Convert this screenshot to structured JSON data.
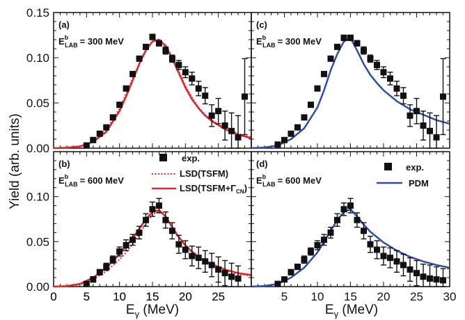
{
  "figure": {
    "ylabel": "Yield  (arb. units)",
    "xlabel_main": "E",
    "xlabel_sub": "γ",
    "xlabel_unit": " (MeV)"
  },
  "colors": {
    "exp": "#111111",
    "lsd": "#e3252b",
    "pdm": "#2c4ea5",
    "axes": "#111111"
  },
  "chart_data": [
    {
      "id": "a",
      "type": "scatter",
      "panel_label": "(a)",
      "energy_prefix": "E",
      "energy_sup": "b",
      "energy_sub": "LAB",
      "energy_value": "= 300 MeV",
      "xlim": [
        0,
        30
      ],
      "ylim": [
        0,
        0.15
      ],
      "x_ticks": [
        "0",
        "5",
        "10",
        "15",
        "20",
        "25"
      ],
      "y_ticks": [
        "0.00",
        "0.05",
        "0.10",
        "0.15"
      ],
      "series": [
        {
          "name": "exp.",
          "kind": "points",
          "x": [
            5,
            6,
            7,
            8,
            9,
            10,
            11,
            12,
            13,
            14,
            15,
            16,
            17,
            18,
            19,
            20,
            21,
            22,
            23,
            24,
            25,
            26,
            27,
            28,
            29
          ],
          "y": [
            0.003,
            0.009,
            0.016,
            0.023,
            0.034,
            0.048,
            0.066,
            0.082,
            0.099,
            0.112,
            0.123,
            0.116,
            0.108,
            0.099,
            0.092,
            0.084,
            0.077,
            0.066,
            0.058,
            0.036,
            0.041,
            0.025,
            0.019,
            0.012,
            0.057
          ],
          "yerr": [
            0.002,
            0.002,
            0.002,
            0.002,
            0.002,
            0.002,
            0.002,
            0.002,
            0.002,
            0.002,
            0.003,
            0.003,
            0.004,
            0.004,
            0.005,
            0.006,
            0.007,
            0.008,
            0.009,
            0.012,
            0.014,
            0.016,
            0.02,
            0.024,
            0.042
          ]
        },
        {
          "name": "LSD(TSFM)",
          "kind": "dotted",
          "x": [
            0,
            2,
            4,
            6,
            8,
            10,
            11,
            12,
            13,
            14,
            15,
            16,
            17,
            18,
            19,
            20,
            21,
            22,
            23,
            24,
            26,
            28,
            30
          ],
          "y": [
            0,
            0.0005,
            0.002,
            0.008,
            0.02,
            0.044,
            0.06,
            0.077,
            0.094,
            0.109,
            0.118,
            0.12,
            0.114,
            0.101,
            0.085,
            0.069,
            0.056,
            0.045,
            0.037,
            0.031,
            0.022,
            0.016,
            0.012
          ]
        },
        {
          "name": "LSD(TSFM+Γ",
          "kind": "solid",
          "x": [
            0,
            2,
            4,
            6,
            8,
            10,
            11,
            12,
            13,
            14,
            15,
            16,
            17,
            18,
            19,
            20,
            21,
            22,
            23,
            24,
            26,
            28,
            30
          ],
          "y": [
            0,
            0.0005,
            0.002,
            0.007,
            0.018,
            0.041,
            0.057,
            0.075,
            0.093,
            0.108,
            0.118,
            0.12,
            0.113,
            0.099,
            0.083,
            0.067,
            0.054,
            0.044,
            0.036,
            0.03,
            0.021,
            0.015,
            0.011
          ]
        }
      ]
    },
    {
      "id": "b",
      "type": "scatter",
      "panel_label": "(b)",
      "energy_prefix": "E",
      "energy_sup": "b",
      "energy_sub": "LAB",
      "energy_value": "= 600 MeV",
      "xlim": [
        0,
        30
      ],
      "ylim": [
        0,
        0.15
      ],
      "x_ticks": [
        "0",
        "5",
        "10",
        "15",
        "20",
        "25"
      ],
      "y_ticks": [
        "0.00",
        "0.05",
        "0.10"
      ],
      "legend": {
        "exp": "exp.",
        "dotted": "LSD(TSFM)",
        "solid_main": "LSD(TSFM+Γ",
        "solid_sub": "CN",
        "solid_close": ")"
      },
      "series": [
        {
          "name": "exp.",
          "kind": "points",
          "x": [
            5,
            6,
            7,
            8,
            9,
            10,
            11,
            12,
            13,
            14,
            15,
            16,
            17,
            18,
            19,
            20,
            21,
            22,
            23,
            24,
            25,
            26,
            27,
            28
          ],
          "y": [
            0.003,
            0.008,
            0.016,
            0.022,
            0.03,
            0.039,
            0.046,
            0.052,
            0.06,
            0.074,
            0.086,
            0.09,
            0.074,
            0.062,
            0.047,
            0.041,
            0.034,
            0.032,
            0.028,
            0.024,
            0.019,
            0.015,
            0.011,
            0.009
          ],
          "yerr": [
            0.002,
            0.003,
            0.003,
            0.004,
            0.004,
            0.005,
            0.006,
            0.006,
            0.007,
            0.007,
            0.008,
            0.008,
            0.009,
            0.009,
            0.01,
            0.01,
            0.011,
            0.012,
            0.012,
            0.013,
            0.014,
            0.014,
            0.015,
            0.014
          ]
        },
        {
          "name": "LSD(TSFM)",
          "kind": "dotted",
          "x": [
            0,
            2,
            4,
            6,
            8,
            10,
            11,
            12,
            13,
            14,
            15,
            16,
            17,
            18,
            19,
            20,
            21,
            22,
            23,
            24,
            26,
            28,
            30
          ],
          "y": [
            0,
            0.0005,
            0.002,
            0.008,
            0.017,
            0.03,
            0.038,
            0.047,
            0.058,
            0.07,
            0.08,
            0.084,
            0.078,
            0.066,
            0.055,
            0.045,
            0.038,
            0.032,
            0.028,
            0.024,
            0.018,
            0.014,
            0.012
          ]
        },
        {
          "name": "LSD(TSFM+Γ",
          "kind": "solid",
          "x": [
            0,
            2,
            4,
            6,
            8,
            10,
            11,
            12,
            13,
            14,
            15,
            16,
            17,
            18,
            19,
            20,
            21,
            22,
            23,
            24,
            26,
            28,
            30
          ],
          "y": [
            0,
            0.0006,
            0.003,
            0.01,
            0.021,
            0.036,
            0.045,
            0.054,
            0.064,
            0.075,
            0.083,
            0.085,
            0.078,
            0.066,
            0.055,
            0.046,
            0.039,
            0.033,
            0.029,
            0.025,
            0.019,
            0.015,
            0.013
          ]
        }
      ]
    },
    {
      "id": "c",
      "type": "scatter",
      "panel_label": "(c)",
      "energy_prefix": "E",
      "energy_sup": "b",
      "energy_sub": "LAB",
      "energy_value": "= 300 MeV",
      "xlim": [
        0,
        30
      ],
      "ylim": [
        0,
        0.15
      ],
      "x_ticks": [],
      "y_ticks": [],
      "series": [
        {
          "name": "exp.",
          "kind": "points",
          "x": [
            4,
            5,
            6,
            7,
            8,
            9,
            10,
            11,
            12,
            13,
            14,
            15,
            16,
            17,
            18,
            19,
            20,
            21,
            22,
            23,
            24,
            25,
            26,
            27,
            28,
            29
          ],
          "y": [
            0.004,
            0.009,
            0.016,
            0.023,
            0.034,
            0.048,
            0.066,
            0.082,
            0.099,
            0.112,
            0.122,
            0.122,
            0.116,
            0.108,
            0.099,
            0.092,
            0.084,
            0.077,
            0.066,
            0.058,
            0.036,
            0.041,
            0.025,
            0.019,
            0.012,
            0.057
          ],
          "yerr": [
            0.002,
            0.002,
            0.002,
            0.002,
            0.002,
            0.002,
            0.002,
            0.002,
            0.002,
            0.002,
            0.003,
            0.003,
            0.003,
            0.004,
            0.004,
            0.005,
            0.006,
            0.007,
            0.008,
            0.009,
            0.012,
            0.014,
            0.016,
            0.02,
            0.024,
            0.042
          ]
        },
        {
          "name": "PDM",
          "kind": "solid",
          "x": [
            0,
            2,
            4,
            6,
            8,
            10,
            11,
            12,
            13,
            14,
            15,
            16,
            17,
            18,
            19,
            20,
            22,
            24,
            26,
            28,
            30
          ],
          "y": [
            0,
            0.0008,
            0.003,
            0.01,
            0.022,
            0.045,
            0.064,
            0.086,
            0.104,
            0.118,
            0.122,
            0.108,
            0.093,
            0.081,
            0.072,
            0.064,
            0.052,
            0.043,
            0.037,
            0.031,
            0.027
          ]
        }
      ]
    },
    {
      "id": "d",
      "type": "scatter",
      "panel_label": "(d)",
      "energy_prefix": "E",
      "energy_sup": "b",
      "energy_sub": "LAB",
      "energy_value": "= 600 MeV",
      "xlim": [
        0,
        30
      ],
      "ylim": [
        0,
        0.15
      ],
      "x_ticks": [
        "5",
        "10",
        "15",
        "20",
        "25",
        "30"
      ],
      "y_ticks": [],
      "legend": {
        "exp": "exp.",
        "solid": "PDM"
      },
      "series": [
        {
          "name": "exp.",
          "kind": "points",
          "x": [
            4,
            5,
            6,
            7,
            8,
            9,
            10,
            11,
            12,
            13,
            14,
            15,
            16,
            17,
            18,
            19,
            20,
            21,
            22,
            23,
            24,
            25,
            26,
            27,
            28,
            29
          ],
          "y": [
            0.003,
            0.008,
            0.016,
            0.022,
            0.03,
            0.039,
            0.046,
            0.052,
            0.06,
            0.074,
            0.086,
            0.09,
            0.074,
            0.062,
            0.047,
            0.041,
            0.034,
            0.032,
            0.028,
            0.024,
            0.019,
            0.015,
            0.011,
            0.009,
            0.008,
            0.007
          ],
          "yerr": [
            0.002,
            0.002,
            0.003,
            0.003,
            0.004,
            0.004,
            0.005,
            0.006,
            0.006,
            0.007,
            0.007,
            0.008,
            0.008,
            0.009,
            0.009,
            0.01,
            0.01,
            0.011,
            0.012,
            0.012,
            0.013,
            0.014,
            0.014,
            0.015,
            0.014,
            0.013
          ]
        },
        {
          "name": "PDM",
          "kind": "solid",
          "x": [
            0,
            2,
            4,
            6,
            8,
            10,
            11,
            12,
            13,
            14,
            15,
            16,
            17,
            18,
            19,
            20,
            22,
            24,
            26,
            28,
            30
          ],
          "y": [
            0,
            0.0008,
            0.003,
            0.01,
            0.021,
            0.038,
            0.05,
            0.062,
            0.074,
            0.083,
            0.086,
            0.078,
            0.069,
            0.061,
            0.055,
            0.049,
            0.04,
            0.033,
            0.028,
            0.024,
            0.021
          ]
        }
      ]
    }
  ]
}
